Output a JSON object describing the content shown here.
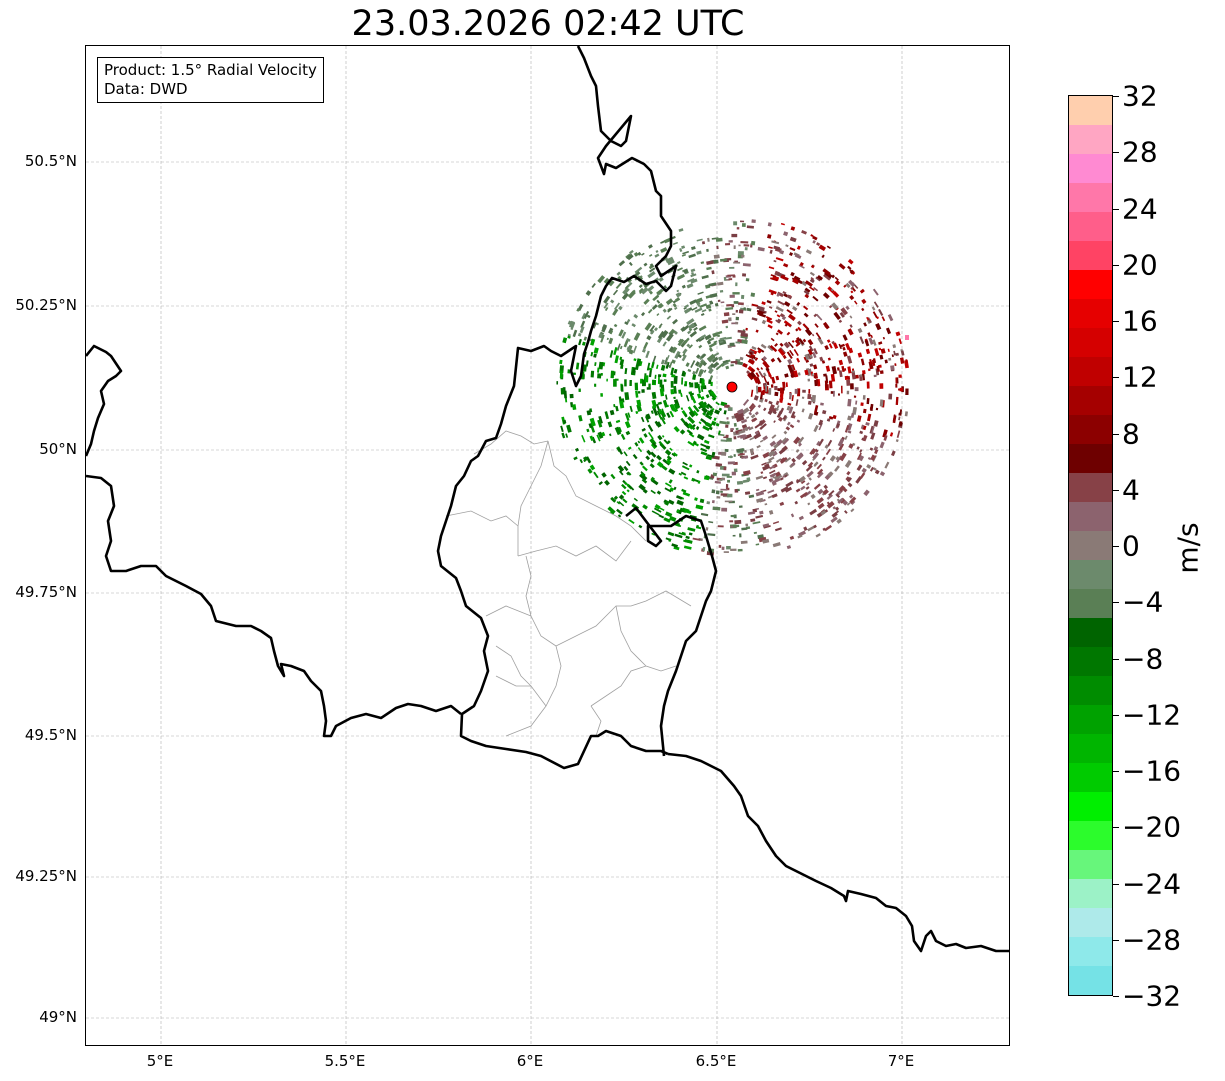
{
  "title": "23.03.2026 02:42 UTC",
  "info": {
    "product": "Product: 1.5° Radial Velocity",
    "source": "Data: DWD"
  },
  "axes": {
    "lon_ticks": [
      "5°E",
      "5.5°E",
      "6°E",
      "6.5°E",
      "7°E"
    ],
    "lat_ticks": [
      "50.5°N",
      "50.25°N",
      "50°N",
      "49.75°N",
      "49.5°N",
      "49.25°N",
      "49°N"
    ]
  },
  "colorbar": {
    "unit": "m/s",
    "ticks": [
      "32",
      "28",
      "24",
      "20",
      "16",
      "12",
      "8",
      "4",
      "0",
      "−4",
      "−8",
      "−12",
      "−16",
      "−20",
      "−24",
      "−28",
      "−32"
    ],
    "colors_top_to_bottom": [
      "#ffcfae",
      "#ffa6c3",
      "#ff8ad2",
      "#ff77a9",
      "#ff5e8a",
      "#ff4364",
      "#ff0000",
      "#e60000",
      "#d50000",
      "#c00000",
      "#a50000",
      "#8c0000",
      "#6e0000",
      "#874147",
      "#8c636e",
      "#8a7a76",
      "#6c8a6c",
      "#5a7f55",
      "#006400",
      "#007700",
      "#008c00",
      "#00a200",
      "#00b500",
      "#00cb00",
      "#00ef00",
      "#2cfc2c",
      "#67f67b",
      "#9cf2c7",
      "#aeeaea",
      "#8ee9ea",
      "#75e2e6"
    ]
  },
  "colors": {
    "border": "#000000",
    "admin": "#a0a0a0",
    "grid": "#b0b0b0",
    "radar_site": "#ff0000"
  }
}
